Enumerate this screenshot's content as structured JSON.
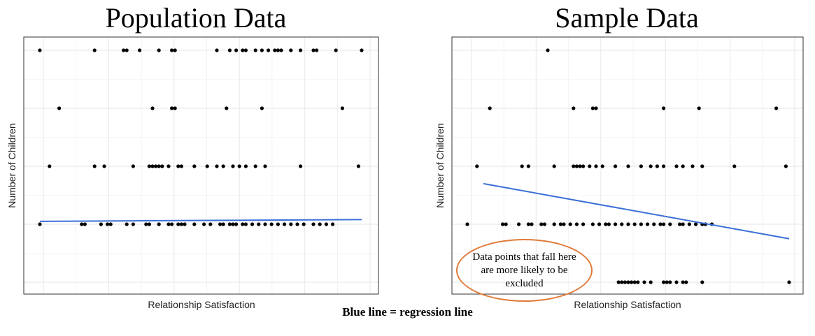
{
  "caption": "Blue line = regression line",
  "callout_text": "Data points that fall here are  more likely to be excluded",
  "colors": {
    "point": "#000000",
    "regression": "#3b6fd8",
    "callout_border": "#e07b39",
    "grid": "#ebebeb",
    "panel_border": "#333333"
  },
  "chart_data": [
    {
      "type": "scatter",
      "title": "Population Data",
      "xlabel": "Relationship Satisfaction",
      "ylabel": "Number of Children",
      "xlim": [
        0,
        100
      ],
      "ylim": [
        -0.2,
        4.1
      ],
      "grid": true,
      "points": [
        [
          0,
          4
        ],
        [
          17,
          4
        ],
        [
          31,
          4
        ],
        [
          37,
          4
        ],
        [
          41,
          4
        ],
        [
          42,
          4
        ],
        [
          55,
          4
        ],
        [
          59,
          4
        ],
        [
          61,
          4
        ],
        [
          63,
          4
        ],
        [
          64,
          4
        ],
        [
          67,
          4
        ],
        [
          69,
          4
        ],
        [
          71,
          4
        ],
        [
          73,
          4
        ],
        [
          74,
          4
        ],
        [
          75,
          4
        ],
        [
          78,
          4
        ],
        [
          81,
          4
        ],
        [
          85,
          4
        ],
        [
          86,
          4
        ],
        [
          92,
          4
        ],
        [
          100,
          4
        ],
        [
          0,
          1
        ],
        [
          13,
          1
        ],
        [
          14,
          1
        ],
        [
          19,
          1
        ],
        [
          21,
          1
        ],
        [
          22,
          1
        ],
        [
          27,
          1
        ],
        [
          29,
          1
        ],
        [
          33,
          1
        ],
        [
          34,
          1
        ],
        [
          37,
          1
        ],
        [
          40,
          1
        ],
        [
          41,
          1
        ],
        [
          43,
          1
        ],
        [
          44,
          1
        ],
        [
          45,
          1
        ],
        [
          48,
          1
        ],
        [
          51,
          1
        ],
        [
          53,
          1
        ],
        [
          56,
          1
        ],
        [
          57,
          1
        ],
        [
          59,
          1
        ],
        [
          60,
          1
        ],
        [
          61,
          1
        ],
        [
          63,
          1
        ],
        [
          64,
          1
        ],
        [
          66,
          1
        ],
        [
          68,
          1
        ],
        [
          70,
          1
        ],
        [
          72,
          1
        ],
        [
          74,
          1
        ],
        [
          76,
          1
        ],
        [
          78,
          1
        ],
        [
          80,
          1
        ],
        [
          82,
          1
        ],
        [
          85,
          1
        ],
        [
          87,
          1
        ],
        [
          89,
          1
        ],
        [
          91,
          1
        ],
        [
          3,
          2
        ],
        [
          17,
          2
        ],
        [
          20,
          2
        ],
        [
          29,
          2
        ],
        [
          34,
          2
        ],
        [
          35,
          2
        ],
        [
          36,
          2
        ],
        [
          37,
          2
        ],
        [
          38,
          2
        ],
        [
          40,
          2
        ],
        [
          43,
          2
        ],
        [
          44,
          2
        ],
        [
          48,
          2
        ],
        [
          52,
          2
        ],
        [
          55,
          2
        ],
        [
          57,
          2
        ],
        [
          60,
          2
        ],
        [
          62,
          2
        ],
        [
          64,
          2
        ],
        [
          67,
          2
        ],
        [
          70,
          2
        ],
        [
          81,
          2
        ],
        [
          99,
          2
        ],
        [
          6,
          3
        ],
        [
          35,
          3
        ],
        [
          41,
          3
        ],
        [
          42,
          3
        ],
        [
          58,
          3
        ],
        [
          69,
          3
        ],
        [
          94,
          3
        ],
        [
          26,
          4
        ],
        [
          27,
          4
        ]
      ],
      "regression": {
        "x": [
          0,
          100
        ],
        "y": [
          1.05,
          1.08
        ]
      }
    },
    {
      "type": "scatter",
      "title": "Sample Data",
      "xlabel": "Relationship Satisfaction",
      "ylabel": "Number of Children",
      "xlim": [
        0,
        100
      ],
      "ylim": [
        -0.2,
        4.1
      ],
      "grid": true,
      "points": [
        [
          47,
          0
        ],
        [
          48,
          0
        ],
        [
          49,
          0
        ],
        [
          50,
          0
        ],
        [
          51,
          0
        ],
        [
          52,
          0
        ],
        [
          53,
          0
        ],
        [
          55,
          0
        ],
        [
          57,
          0
        ],
        [
          61,
          0
        ],
        [
          62,
          0
        ],
        [
          63,
          0
        ],
        [
          65,
          0
        ],
        [
          67,
          0
        ],
        [
          68,
          0
        ],
        [
          73,
          0
        ],
        [
          100,
          0
        ],
        [
          0,
          1
        ],
        [
          11,
          1
        ],
        [
          12,
          1
        ],
        [
          16,
          1
        ],
        [
          19,
          1
        ],
        [
          20,
          1
        ],
        [
          23,
          1
        ],
        [
          24,
          1
        ],
        [
          27,
          1
        ],
        [
          29,
          1
        ],
        [
          30,
          1
        ],
        [
          32,
          1
        ],
        [
          34,
          1
        ],
        [
          36,
          1
        ],
        [
          39,
          1
        ],
        [
          41,
          1
        ],
        [
          43,
          1
        ],
        [
          44,
          1
        ],
        [
          46,
          1
        ],
        [
          48,
          1
        ],
        [
          50,
          1
        ],
        [
          52,
          1
        ],
        [
          54,
          1
        ],
        [
          56,
          1
        ],
        [
          58,
          1
        ],
        [
          60,
          1
        ],
        [
          61,
          1
        ],
        [
          63,
          1
        ],
        [
          66,
          1
        ],
        [
          67,
          1
        ],
        [
          69,
          1
        ],
        [
          71,
          1
        ],
        [
          73,
          1
        ],
        [
          74,
          1
        ],
        [
          76,
          1
        ],
        [
          3,
          2
        ],
        [
          17,
          2
        ],
        [
          19,
          2
        ],
        [
          27,
          2
        ],
        [
          33,
          2
        ],
        [
          34,
          2
        ],
        [
          35,
          2
        ],
        [
          36,
          2
        ],
        [
          38,
          2
        ],
        [
          40,
          2
        ],
        [
          42,
          2
        ],
        [
          46,
          2
        ],
        [
          50,
          2
        ],
        [
          54,
          2
        ],
        [
          57,
          2
        ],
        [
          59,
          2
        ],
        [
          61,
          2
        ],
        [
          65,
          2
        ],
        [
          67,
          2
        ],
        [
          70,
          2
        ],
        [
          73,
          2
        ],
        [
          83,
          2
        ],
        [
          99,
          2
        ],
        [
          7,
          3
        ],
        [
          33,
          3
        ],
        [
          39,
          3
        ],
        [
          40,
          3
        ],
        [
          61,
          3
        ],
        [
          72,
          3
        ],
        [
          96,
          3
        ],
        [
          25,
          4
        ]
      ],
      "regression": {
        "x": [
          5,
          100
        ],
        "y": [
          1.7,
          0.75
        ]
      }
    }
  ]
}
